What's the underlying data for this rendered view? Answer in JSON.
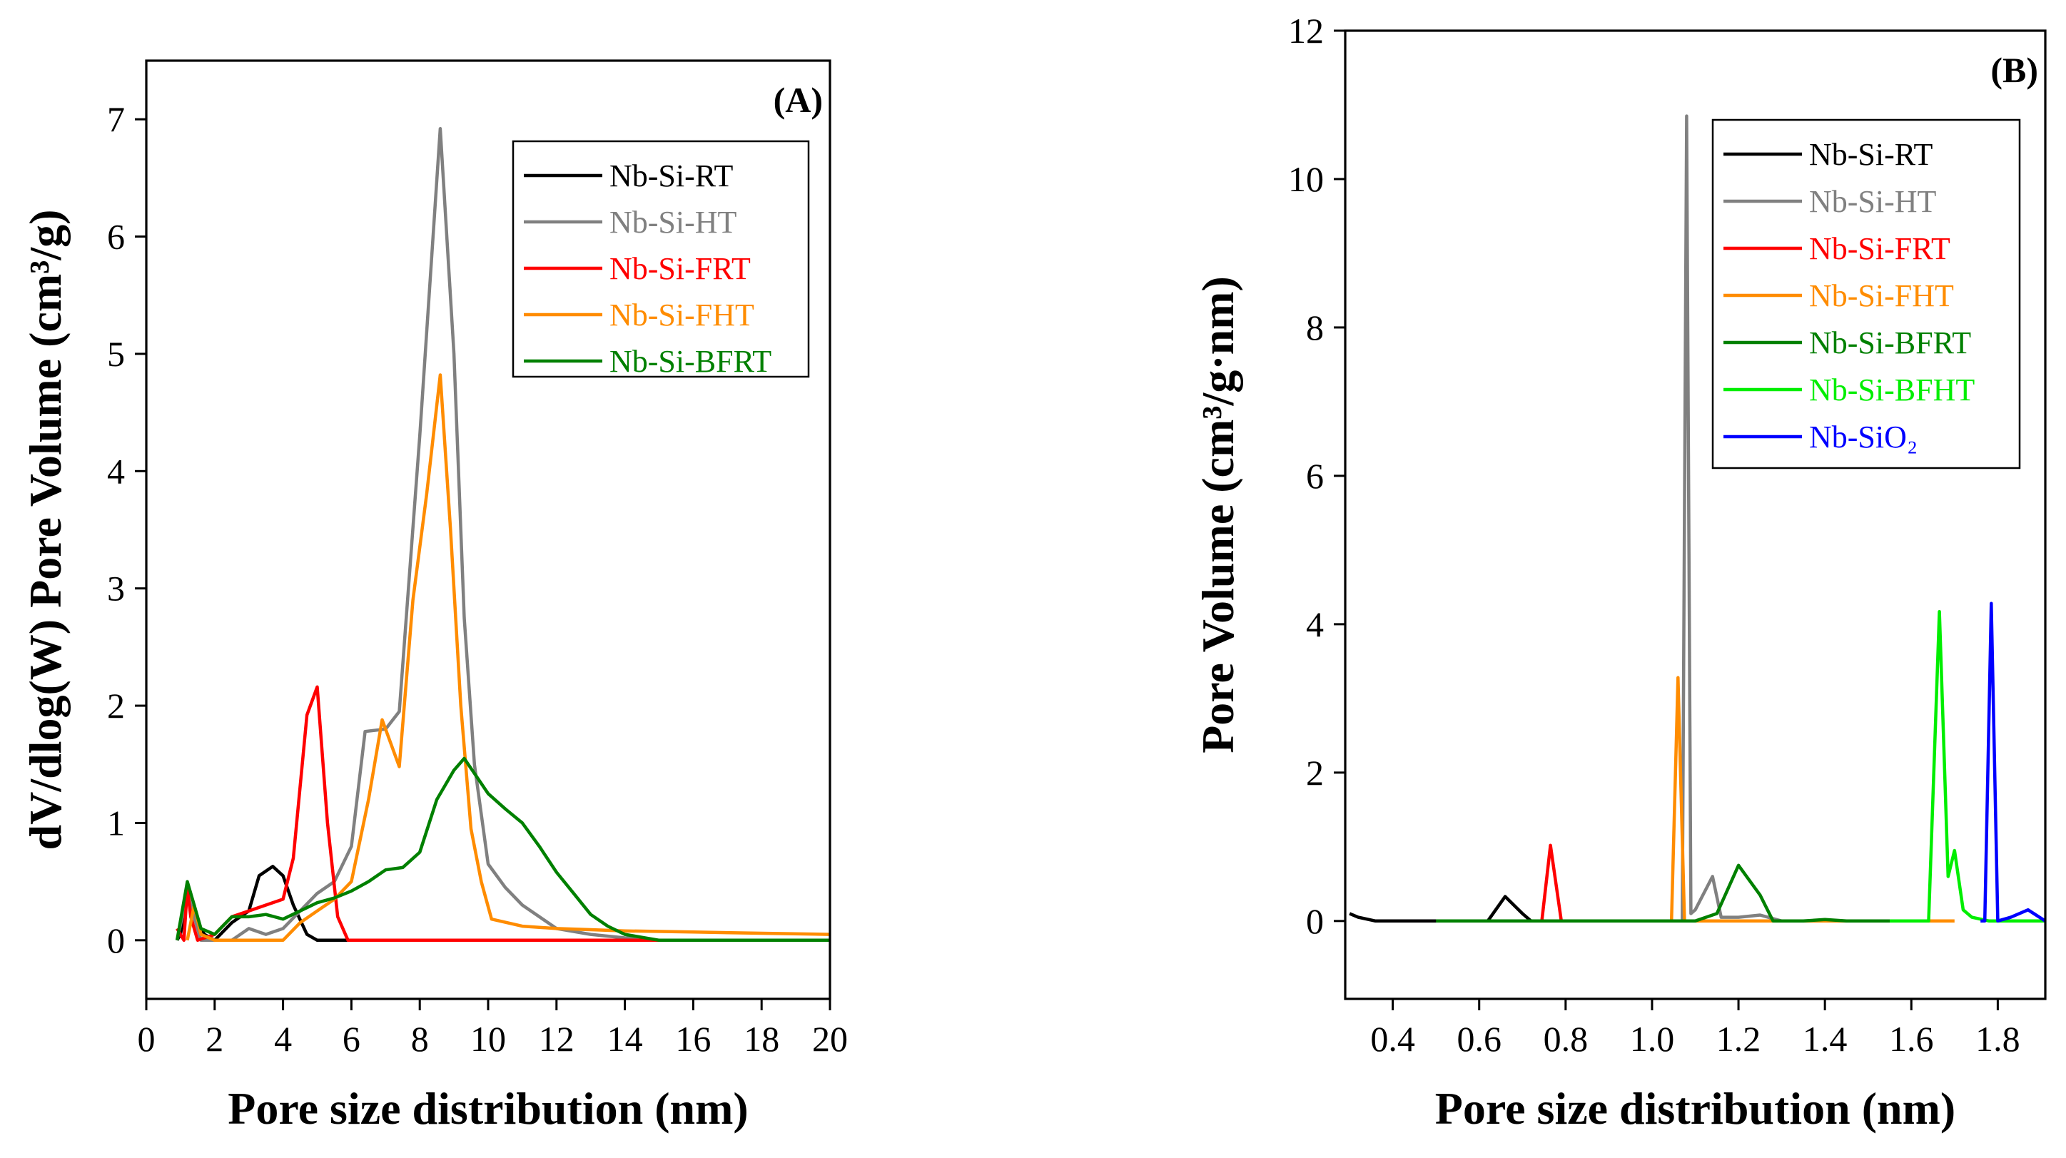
{
  "chart_data": [
    {
      "type": "line",
      "panel_label": "(A)",
      "xlabel": "Pore size distribution (nm)",
      "ylabel": "dV/dlog(W) Pore Volume (cm³/g)",
      "xlim": [
        0,
        20
      ],
      "ylim": [
        -0.5,
        7.5
      ],
      "xticks": [
        0,
        2,
        4,
        6,
        8,
        10,
        12,
        14,
        16,
        18,
        20
      ],
      "yticks": [
        0,
        1,
        2,
        3,
        4,
        5,
        6,
        7
      ],
      "legend_position": "top-right",
      "series": [
        {
          "name": "Nb-Si-RT",
          "color": "#000000",
          "x": [
            0.9,
            1.0,
            1.2,
            1.3,
            1.4,
            1.5,
            1.7,
            2.0,
            2.5,
            3.0,
            3.3,
            3.7,
            4.0,
            4.3,
            4.7,
            5.0,
            5.3,
            6.0
          ],
          "y": [
            0,
            0.05,
            0.4,
            0.25,
            0.3,
            0.15,
            0.05,
            0.0,
            0.15,
            0.25,
            0.55,
            0.63,
            0.55,
            0.3,
            0.05,
            0.0,
            0.0,
            0.0
          ]
        },
        {
          "name": "Nb-Si-HT",
          "color": "#808080",
          "x": [
            0.9,
            1.2,
            1.4,
            1.6,
            2.0,
            2.5,
            3.0,
            3.5,
            4.0,
            4.5,
            5.0,
            5.5,
            6.0,
            6.4,
            7.0,
            7.4,
            8.0,
            8.6,
            9.0,
            9.3,
            9.6,
            10.0,
            10.5,
            11.0,
            11.5,
            12.0,
            13.0,
            14.0,
            15.0,
            16.0,
            17.0,
            18.0,
            19.0,
            20.0
          ],
          "y": [
            0,
            0.4,
            0.2,
            0.0,
            0.0,
            0.0,
            0.1,
            0.05,
            0.1,
            0.25,
            0.4,
            0.5,
            0.8,
            1.78,
            1.8,
            1.95,
            4.3,
            6.92,
            5.0,
            2.75,
            1.5,
            0.65,
            0.45,
            0.3,
            0.2,
            0.1,
            0.05,
            0.02,
            0.0,
            0.0,
            0.0,
            0.0,
            0.0,
            0.0
          ]
        },
        {
          "name": "Nb-Si-FRT",
          "color": "#ff0000",
          "x": [
            0.9,
            1.0,
            1.1,
            1.2,
            1.3,
            1.5,
            2.0,
            2.5,
            3.0,
            3.5,
            4.0,
            4.3,
            4.7,
            5.0,
            5.3,
            5.6,
            5.9,
            7,
            10,
            14,
            20
          ],
          "y": [
            0.1,
            0.05,
            0.0,
            0.45,
            0.2,
            0.0,
            0.05,
            0.2,
            0.25,
            0.3,
            0.35,
            0.7,
            1.92,
            2.16,
            1.0,
            0.2,
            0.0,
            0.0,
            0.0,
            0.0,
            0.0
          ]
        },
        {
          "name": "Nb-Si-FHT",
          "color": "#ff8c00",
          "x": [
            1.2,
            1.4,
            1.6,
            2.0,
            2.5,
            3.0,
            3.5,
            4.0,
            4.5,
            5.0,
            5.5,
            6.0,
            6.5,
            6.9,
            7.4,
            7.8,
            8.2,
            8.6,
            8.9,
            9.2,
            9.5,
            9.8,
            10.1,
            11.0,
            12.0,
            13.0,
            14.0,
            16.0,
            18.0,
            20.0
          ],
          "y": [
            0.0,
            0.3,
            0.05,
            0.0,
            0.0,
            0.0,
            0.0,
            0.0,
            0.15,
            0.25,
            0.35,
            0.5,
            1.2,
            1.88,
            1.48,
            2.9,
            3.8,
            4.82,
            3.5,
            2.0,
            0.95,
            0.5,
            0.18,
            0.12,
            0.1,
            0.09,
            0.08,
            0.07,
            0.06,
            0.05
          ]
        },
        {
          "name": "Nb-Si-BFRT",
          "color": "#008000",
          "x": [
            0.9,
            1.2,
            1.4,
            1.6,
            2.0,
            2.5,
            3.0,
            3.5,
            4.0,
            4.5,
            5.0,
            5.5,
            6.0,
            6.5,
            7.0,
            7.5,
            8.0,
            8.5,
            9.0,
            9.3,
            9.7,
            10.0,
            10.5,
            11.0,
            11.5,
            12.0,
            12.5,
            13.0,
            13.5,
            14.0,
            15.0,
            16.0,
            17.0,
            18.0,
            19.0,
            20.0
          ],
          "y": [
            0,
            0.5,
            0.3,
            0.1,
            0.05,
            0.2,
            0.2,
            0.22,
            0.18,
            0.25,
            0.32,
            0.36,
            0.42,
            0.5,
            0.6,
            0.62,
            0.75,
            1.2,
            1.45,
            1.55,
            1.38,
            1.25,
            1.12,
            1.0,
            0.8,
            0.58,
            0.4,
            0.22,
            0.12,
            0.05,
            0.0,
            0.0,
            0.0,
            0.0,
            0.0,
            0.0
          ]
        }
      ]
    },
    {
      "type": "line",
      "panel_label": "(B)",
      "xlabel": "Pore size distribution (nm)",
      "ylabel": "Pore Volume (cm³/g·nm)",
      "xlim": [
        0.29,
        1.91
      ],
      "ylim": [
        -1.05,
        12
      ],
      "xticks": [
        0.4,
        0.6,
        0.8,
        1.0,
        1.2,
        1.4,
        1.6,
        1.8
      ],
      "xtick_labels": [
        "0.4",
        "0.6",
        "0.8",
        "1.0",
        "1.2",
        "1.4",
        "1.6",
        "1.8"
      ],
      "yticks": [
        0,
        2,
        4,
        6,
        8,
        10,
        12
      ],
      "legend_position": "top-right",
      "series": [
        {
          "name": "Nb-Si-RT",
          "color": "#000000",
          "x": [
            0.3,
            0.32,
            0.36,
            0.45,
            0.55,
            0.62,
            0.66,
            0.7,
            0.72,
            0.8,
            0.9,
            1.0,
            1.1,
            1.2,
            1.3,
            1.4,
            1.5
          ],
          "y": [
            0.1,
            0.05,
            0.0,
            0.0,
            0.0,
            0.0,
            0.33,
            0.1,
            0.0,
            0.0,
            0.0,
            0.0,
            0.0,
            0.0,
            0.0,
            0.0,
            0.0
          ]
        },
        {
          "name": "Nb-Si-HT",
          "color": "#808080",
          "x": [
            1.04,
            1.07,
            1.08,
            1.09,
            1.1,
            1.14,
            1.16,
            1.2,
            1.25,
            1.3
          ],
          "y": [
            0.0,
            0.0,
            10.85,
            0.1,
            0.15,
            0.6,
            0.05,
            0.05,
            0.08,
            0.0
          ]
        },
        {
          "name": "Nb-Si-FRT",
          "color": "#ff0000",
          "x": [
            0.72,
            0.745,
            0.765,
            0.79,
            0.81
          ],
          "y": [
            0.0,
            0.0,
            1.02,
            0.0,
            0.0
          ]
        },
        {
          "name": "Nb-Si-FHT",
          "color": "#ff8c00",
          "x": [
            1.0,
            1.045,
            1.06,
            1.075,
            1.1,
            1.2,
            1.3,
            1.4,
            1.5,
            1.6,
            1.7
          ],
          "y": [
            0.0,
            0.0,
            3.28,
            0.0,
            0.0,
            0.0,
            0.0,
            0.0,
            0.0,
            0.0,
            0.0
          ]
        },
        {
          "name": "Nb-Si-BFRT",
          "color": "#008000",
          "x": [
            0.5,
            0.7,
            0.9,
            1.1,
            1.15,
            1.2,
            1.25,
            1.28,
            1.35,
            1.4,
            1.45,
            1.5,
            1.55
          ],
          "y": [
            0.0,
            0.0,
            0.0,
            0.0,
            0.1,
            0.75,
            0.35,
            0.0,
            0.0,
            0.02,
            0.0,
            0.0,
            0.0
          ]
        },
        {
          "name": "Nb-Si-BFHT",
          "color": "#00ee00",
          "x": [
            1.55,
            1.64,
            1.665,
            1.685,
            1.7,
            1.72,
            1.74,
            1.78,
            1.82,
            1.91
          ],
          "y": [
            0.0,
            0.0,
            4.17,
            0.6,
            0.95,
            0.15,
            0.05,
            0.0,
            0.0,
            0.0
          ]
        },
        {
          "name": "Nb-SiO₂",
          "color": "#0000ff",
          "x": [
            1.76,
            1.77,
            1.785,
            1.8,
            1.83,
            1.87,
            1.91
          ],
          "y": [
            0.0,
            0.0,
            4.28,
            0.0,
            0.05,
            0.15,
            0.0
          ]
        }
      ]
    }
  ]
}
